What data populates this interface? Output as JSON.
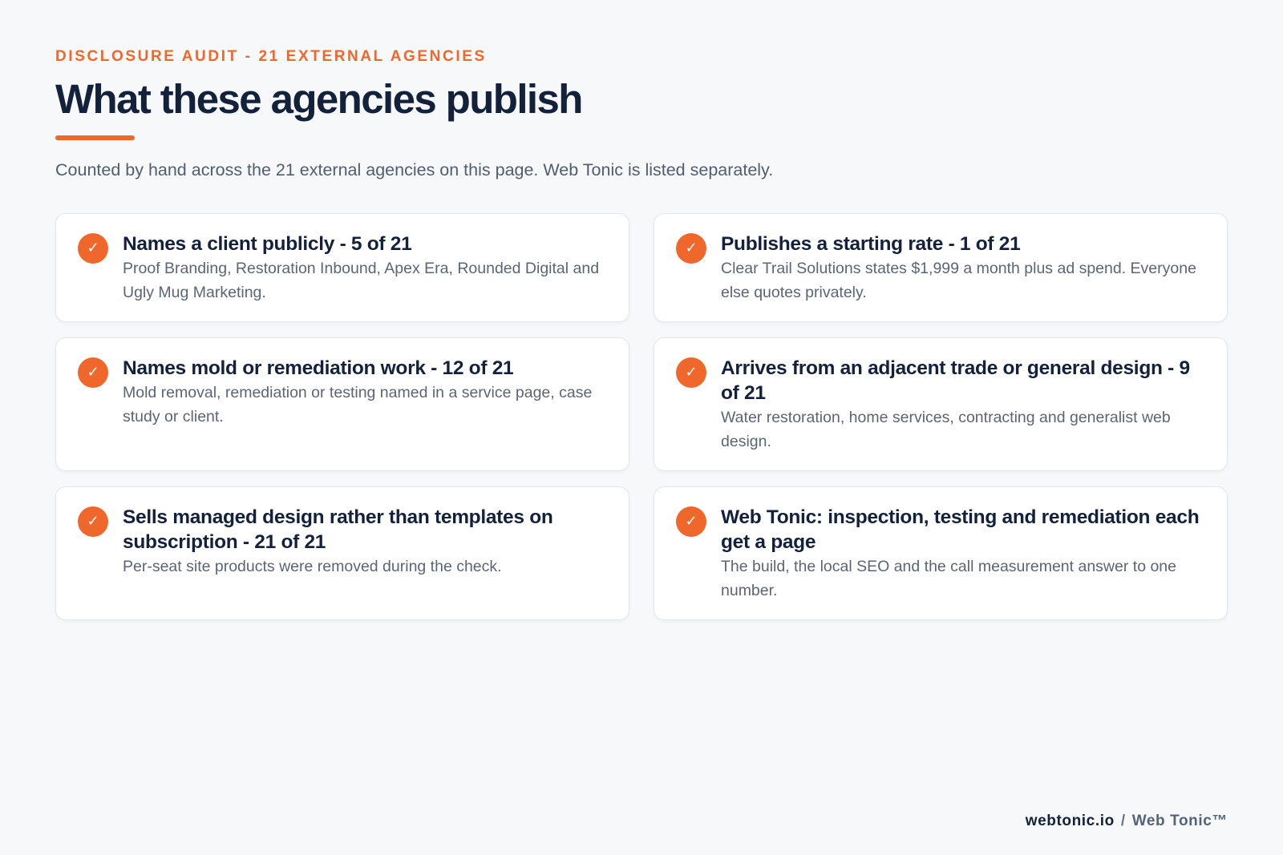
{
  "header": {
    "eyebrow": "DISCLOSURE AUDIT - 21 EXTERNAL AGENCIES",
    "title": "What these agencies publish",
    "subtitle": "Counted by hand across the 21 external agencies on this page. Web Tonic is listed separately."
  },
  "icons": {
    "check": "check-icon",
    "check_glyph": "✓"
  },
  "colors": {
    "accent": "#f0672b",
    "heading": "#13213b",
    "body_text": "#5b6574",
    "background": "#f6f8fa",
    "card": "#ffffff"
  },
  "cards": [
    {
      "title": "Names a client publicly - 5 of 21",
      "body": "Proof Branding, Restoration Inbound, Apex Era, Rounded Digital and Ugly Mug Marketing."
    },
    {
      "title": "Publishes a starting rate - 1 of 21",
      "body": "Clear Trail Solutions states $1,999 a month plus ad spend. Everyone else quotes privately."
    },
    {
      "title": "Names mold or remediation work - 12 of 21",
      "body": "Mold removal, remediation or testing named in a service page, case study or client."
    },
    {
      "title": "Arrives from an adjacent trade or general design - 9 of 21",
      "body": "Water restoration, home services, contracting and generalist web design."
    },
    {
      "title": "Sells managed design rather than templates on subscription - 21 of 21",
      "body": "Per-seat site products were removed during the check."
    },
    {
      "title": "Web Tonic: inspection, testing and remediation each get a page",
      "body": "The build, the local SEO and the call measurement answer to one number."
    }
  ],
  "footer": {
    "domain": "webtonic.io",
    "separator": "/",
    "brand": "Web Tonic™"
  }
}
